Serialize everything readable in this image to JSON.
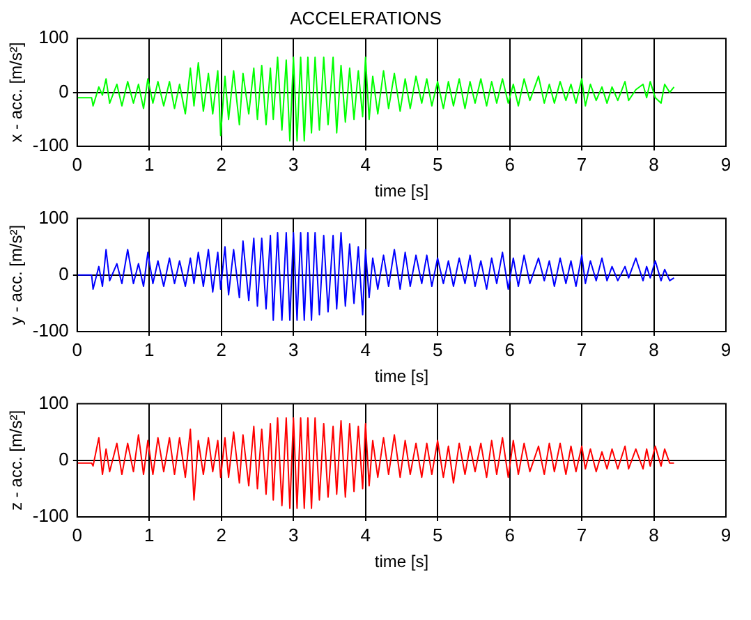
{
  "chart_data": [
    {
      "type": "line",
      "title": "ACCELERATIONS",
      "xlabel": "time [s]",
      "ylabel": "x - acc. [m/s²]",
      "xlim": [
        0,
        9
      ],
      "xticks": [
        0,
        1,
        2,
        3,
        4,
        5,
        6,
        7,
        8,
        9
      ],
      "ylim": [
        -100,
        100
      ],
      "yticks": [
        -100,
        0,
        100
      ],
      "grid": true,
      "legend": false,
      "x": [
        0,
        0.2,
        0.22,
        0.3,
        0.35,
        0.4,
        0.45,
        0.55,
        0.62,
        0.7,
        0.78,
        0.85,
        0.92,
        0.98,
        1.05,
        1.12,
        1.2,
        1.28,
        1.35,
        1.42,
        1.5,
        1.57,
        1.62,
        1.68,
        1.75,
        1.82,
        1.88,
        1.95,
        1.99,
        2.05,
        2.1,
        2.17,
        2.25,
        2.3,
        2.38,
        2.45,
        2.5,
        2.56,
        2.62,
        2.68,
        2.72,
        2.78,
        2.84,
        2.9,
        2.95,
        3.0,
        3.05,
        3.1,
        3.15,
        3.2,
        3.25,
        3.3,
        3.36,
        3.42,
        3.48,
        3.55,
        3.6,
        3.66,
        3.72,
        3.78,
        3.84,
        3.9,
        3.96,
        4.0,
        4.05,
        4.1,
        4.17,
        4.25,
        4.32,
        4.4,
        4.48,
        4.55,
        4.62,
        4.7,
        4.78,
        4.85,
        4.92,
        5.0,
        5.08,
        5.15,
        5.22,
        5.3,
        5.38,
        5.45,
        5.52,
        5.6,
        5.68,
        5.75,
        5.82,
        5.9,
        5.98,
        6.05,
        6.12,
        6.2,
        6.28,
        6.4,
        6.48,
        6.55,
        6.62,
        6.7,
        6.78,
        6.85,
        6.92,
        7.0,
        7.05,
        7.12,
        7.2,
        7.28,
        7.35,
        7.42,
        7.5,
        7.6,
        7.65,
        7.75,
        7.85,
        7.9,
        7.95,
        8.02,
        8.1,
        8.15,
        8.22,
        8.28
      ],
      "series": [
        {
          "color": "#00ff00",
          "values": [
            -10,
            -10,
            -25,
            10,
            -5,
            25,
            -20,
            15,
            -25,
            20,
            -20,
            15,
            -30,
            25,
            -20,
            20,
            -25,
            20,
            -30,
            15,
            -40,
            45,
            -25,
            55,
            -35,
            35,
            -40,
            40,
            -80,
            30,
            -50,
            40,
            -60,
            35,
            -40,
            45,
            -50,
            50,
            -60,
            45,
            -50,
            65,
            -70,
            60,
            -90,
            65,
            -90,
            65,
            -90,
            65,
            -75,
            65,
            -70,
            65,
            -60,
            65,
            -75,
            50,
            -55,
            45,
            -50,
            40,
            -45,
            65,
            -50,
            30,
            -40,
            40,
            -30,
            35,
            -35,
            25,
            -30,
            30,
            -20,
            25,
            -25,
            20,
            -30,
            20,
            -25,
            25,
            -30,
            20,
            -20,
            25,
            -25,
            20,
            -20,
            25,
            -20,
            15,
            -25,
            25,
            -15,
            30,
            -20,
            15,
            -20,
            20,
            -15,
            15,
            -20,
            25,
            -25,
            15,
            -15,
            10,
            -20,
            10,
            -15,
            20,
            -15,
            5,
            15,
            -10,
            20,
            -10,
            -20,
            15,
            0,
            10
          ]
        }
      ]
    },
    {
      "type": "line",
      "xlabel": "time [s]",
      "ylabel": "y - acc. [m/s²]",
      "xlim": [
        0,
        9
      ],
      "xticks": [
        0,
        1,
        2,
        3,
        4,
        5,
        6,
        7,
        8,
        9
      ],
      "ylim": [
        -100,
        100
      ],
      "yticks": [
        -100,
        0,
        100
      ],
      "grid": true,
      "legend": false,
      "x": [
        0,
        0.2,
        0.22,
        0.3,
        0.35,
        0.4,
        0.45,
        0.55,
        0.62,
        0.7,
        0.78,
        0.85,
        0.92,
        0.98,
        1.05,
        1.12,
        1.2,
        1.28,
        1.35,
        1.42,
        1.5,
        1.57,
        1.62,
        1.68,
        1.75,
        1.82,
        1.88,
        1.95,
        1.99,
        2.05,
        2.1,
        2.17,
        2.25,
        2.3,
        2.38,
        2.45,
        2.5,
        2.56,
        2.62,
        2.68,
        2.72,
        2.78,
        2.84,
        2.9,
        2.95,
        3.0,
        3.05,
        3.1,
        3.15,
        3.2,
        3.25,
        3.3,
        3.36,
        3.42,
        3.48,
        3.55,
        3.6,
        3.66,
        3.72,
        3.78,
        3.84,
        3.9,
        3.96,
        4.0,
        4.05,
        4.1,
        4.17,
        4.25,
        4.32,
        4.4,
        4.48,
        4.55,
        4.62,
        4.7,
        4.78,
        4.85,
        4.92,
        5.0,
        5.08,
        5.15,
        5.22,
        5.3,
        5.38,
        5.45,
        5.52,
        5.6,
        5.68,
        5.75,
        5.82,
        5.9,
        5.98,
        6.05,
        6.12,
        6.2,
        6.28,
        6.4,
        6.48,
        6.55,
        6.62,
        6.7,
        6.78,
        6.85,
        6.92,
        7.0,
        7.05,
        7.12,
        7.2,
        7.28,
        7.35,
        7.42,
        7.5,
        7.6,
        7.65,
        7.75,
        7.85,
        7.9,
        7.95,
        8.02,
        8.1,
        8.15,
        8.22,
        8.28
      ],
      "series": [
        {
          "color": "#0000ff",
          "values": [
            0,
            0,
            -25,
            15,
            -20,
            45,
            -10,
            20,
            -15,
            45,
            -15,
            20,
            -20,
            40,
            -15,
            25,
            -20,
            30,
            -15,
            25,
            -20,
            30,
            -15,
            40,
            -20,
            45,
            -30,
            40,
            -25,
            50,
            -35,
            45,
            -40,
            60,
            -45,
            65,
            -55,
            65,
            -60,
            70,
            -80,
            75,
            -80,
            75,
            -80,
            75,
            -80,
            75,
            -80,
            75,
            -80,
            75,
            -70,
            70,
            -65,
            70,
            -60,
            75,
            -55,
            55,
            -50,
            50,
            -70,
            45,
            -40,
            30,
            -25,
            35,
            -20,
            45,
            -25,
            40,
            -20,
            35,
            -15,
            35,
            -20,
            30,
            -15,
            25,
            -20,
            30,
            -15,
            35,
            -20,
            25,
            -25,
            30,
            -15,
            40,
            -25,
            30,
            -20,
            35,
            -15,
            30,
            -10,
            25,
            -20,
            30,
            -15,
            25,
            -20,
            35,
            -15,
            25,
            -10,
            30,
            -10,
            15,
            -10,
            15,
            -5,
            30,
            -10,
            15,
            -5,
            25,
            -10,
            10,
            -10,
            -5
          ]
        }
      ]
    },
    {
      "type": "line",
      "xlabel": "time [s]",
      "ylabel": "z - acc. [m/s²]",
      "xlim": [
        0,
        9
      ],
      "xticks": [
        0,
        1,
        2,
        3,
        4,
        5,
        6,
        7,
        8,
        9
      ],
      "ylim": [
        -100,
        100
      ],
      "yticks": [
        -100,
        0,
        100
      ],
      "grid": true,
      "legend": false,
      "x": [
        0,
        0.2,
        0.22,
        0.3,
        0.35,
        0.4,
        0.45,
        0.55,
        0.62,
        0.7,
        0.78,
        0.85,
        0.92,
        0.98,
        1.05,
        1.12,
        1.2,
        1.28,
        1.35,
        1.42,
        1.5,
        1.57,
        1.62,
        1.68,
        1.75,
        1.82,
        1.88,
        1.95,
        1.99,
        2.05,
        2.1,
        2.17,
        2.25,
        2.3,
        2.38,
        2.45,
        2.5,
        2.56,
        2.62,
        2.68,
        2.72,
        2.78,
        2.84,
        2.9,
        2.95,
        3.0,
        3.05,
        3.1,
        3.15,
        3.2,
        3.25,
        3.3,
        3.36,
        3.42,
        3.48,
        3.55,
        3.6,
        3.66,
        3.72,
        3.78,
        3.84,
        3.9,
        3.96,
        4.0,
        4.05,
        4.1,
        4.17,
        4.25,
        4.32,
        4.4,
        4.48,
        4.55,
        4.62,
        4.7,
        4.78,
        4.85,
        4.92,
        5.0,
        5.08,
        5.15,
        5.22,
        5.3,
        5.38,
        5.45,
        5.52,
        5.6,
        5.68,
        5.75,
        5.82,
        5.9,
        5.98,
        6.05,
        6.12,
        6.2,
        6.28,
        6.4,
        6.48,
        6.55,
        6.62,
        6.7,
        6.78,
        6.85,
        6.92,
        7.0,
        7.05,
        7.12,
        7.2,
        7.28,
        7.35,
        7.42,
        7.5,
        7.6,
        7.65,
        7.75,
        7.85,
        7.9,
        7.95,
        8.02,
        8.1,
        8.15,
        8.22,
        8.28
      ],
      "series": [
        {
          "color": "#ff0000",
          "values": [
            -5,
            -5,
            -10,
            40,
            -25,
            20,
            -20,
            30,
            -25,
            30,
            -20,
            45,
            -25,
            35,
            -25,
            40,
            -20,
            40,
            -25,
            40,
            -30,
            55,
            -70,
            35,
            -25,
            40,
            -20,
            35,
            -30,
            40,
            -30,
            50,
            -40,
            45,
            -45,
            60,
            -50,
            55,
            -60,
            65,
            -70,
            75,
            -80,
            75,
            -85,
            75,
            -85,
            75,
            -85,
            75,
            -85,
            75,
            -70,
            65,
            -65,
            60,
            -60,
            70,
            -65,
            65,
            -55,
            60,
            -50,
            65,
            -45,
            35,
            -30,
            40,
            -25,
            45,
            -30,
            35,
            -25,
            30,
            -30,
            30,
            -25,
            35,
            -30,
            25,
            -40,
            30,
            -25,
            25,
            -20,
            30,
            -30,
            35,
            -25,
            40,
            -30,
            35,
            -25,
            30,
            -20,
            25,
            -25,
            30,
            -20,
            30,
            -25,
            25,
            -20,
            25,
            -15,
            20,
            -20,
            15,
            -15,
            20,
            -15,
            25,
            -15,
            20,
            -15,
            20,
            -10,
            25,
            -10,
            20,
            -5,
            -5
          ]
        }
      ]
    }
  ]
}
